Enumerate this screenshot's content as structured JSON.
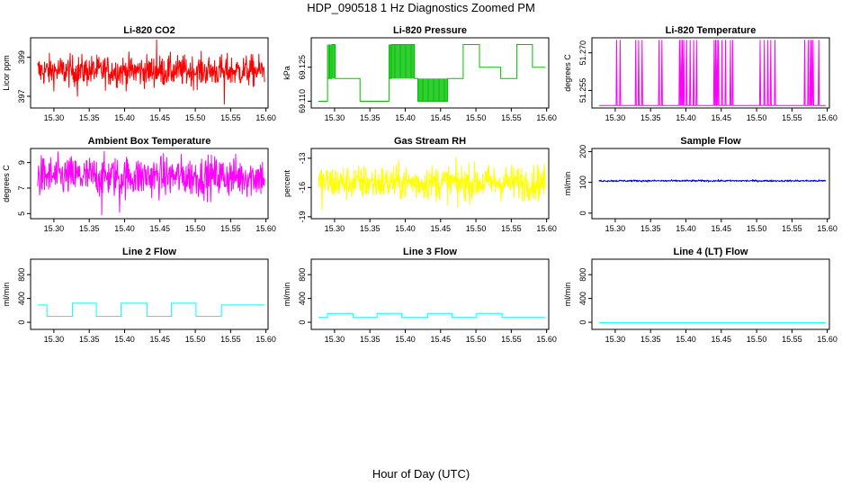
{
  "figure": {
    "title": "HDP_090518  1 Hz Diagnostics Zoomed PM",
    "xlabel": "Hour of Day (UTC)"
  },
  "chart_data": [
    {
      "id": "co2",
      "type": "line",
      "title": "Li-820 CO2",
      "ylabel": "Licor ppm",
      "color": "#ff0000",
      "xlim": [
        15.267,
        15.603
      ],
      "ylim": [
        396.4,
        400.0
      ],
      "xticks": [
        15.3,
        15.35,
        15.4,
        15.45,
        15.5,
        15.55,
        15.6
      ],
      "xtick_labels": [
        "15.30",
        "15.35",
        "15.40",
        "15.45",
        "15.50",
        "15.55",
        "15.60"
      ],
      "yticks": [
        397,
        399
      ],
      "ytick_labels": [
        "397",
        "399"
      ],
      "x_start": 15.277,
      "x_end": 15.598,
      "series_pattern": "noise",
      "mean": 398.3,
      "noise_sd": 0.4,
      "spikes": [
        [
          15.445,
          399.9
        ],
        [
          15.541,
          396.6
        ],
        [
          15.333,
          397.0
        ]
      ]
    },
    {
      "id": "pressure",
      "type": "line",
      "title": "Li-820 Pressure",
      "ylabel": "kPa",
      "color": "#00c000",
      "xlim": [
        15.267,
        15.603
      ],
      "ylim": [
        69.107,
        69.138
      ],
      "xticks": [
        15.3,
        15.35,
        15.4,
        15.45,
        15.5,
        15.55,
        15.6
      ],
      "xtick_labels": [
        "15.30",
        "15.35",
        "15.40",
        "15.45",
        "15.50",
        "15.55",
        "15.60"
      ],
      "yticks": [
        69.11,
        69.125
      ],
      "ytick_labels": [
        "69.110",
        "69.125"
      ],
      "x_start": 15.277,
      "x_end": 15.598,
      "series_pattern": "steps",
      "steps": [
        [
          15.277,
          69.11
        ],
        [
          15.29,
          69.12
        ],
        [
          15.296,
          69.135
        ],
        [
          15.301,
          69.12
        ],
        [
          15.336,
          69.11
        ],
        [
          15.377,
          69.12
        ],
        [
          15.38,
          69.135
        ],
        [
          15.413,
          69.12
        ],
        [
          15.418,
          69.11
        ],
        [
          15.46,
          69.12
        ],
        [
          15.482,
          69.135
        ],
        [
          15.505,
          69.125
        ],
        [
          15.535,
          69.12
        ],
        [
          15.558,
          69.135
        ],
        [
          15.58,
          69.125
        ],
        [
          15.598,
          69.125
        ]
      ],
      "flicker": [
        [
          15.29,
          15.301,
          69.12,
          69.135
        ],
        [
          15.377,
          15.413,
          69.12,
          69.135
        ],
        [
          15.418,
          15.46,
          69.11,
          69.12
        ]
      ]
    },
    {
      "id": "temperature",
      "type": "line",
      "title": "Li-820 Temperature",
      "ylabel": "degrees C",
      "color": "#ff00ff",
      "xlim": [
        15.267,
        15.603
      ],
      "ylim": [
        51.248,
        51.276
      ],
      "xticks": [
        15.3,
        15.35,
        15.4,
        15.45,
        15.5,
        15.55,
        15.6
      ],
      "xtick_labels": [
        "15.30",
        "15.35",
        "15.40",
        "15.45",
        "15.50",
        "15.55",
        "15.60"
      ],
      "yticks": [
        51.255,
        51.27
      ],
      "ytick_labels": [
        "51.255",
        "51.270"
      ],
      "x_start": 15.277,
      "x_end": 15.598,
      "series_pattern": "pulses",
      "low": 51.249,
      "high": 51.275,
      "pulses": [
        15.302,
        15.307,
        15.329,
        15.333,
        15.338,
        15.362,
        15.366,
        15.391,
        15.393,
        15.395,
        15.397,
        15.401,
        15.406,
        15.411,
        15.415,
        15.44,
        15.442,
        15.444,
        15.446,
        15.451,
        15.456,
        15.463,
        15.466,
        15.505,
        15.511,
        15.516,
        15.52,
        15.526,
        15.568,
        15.573,
        15.576,
        15.578,
        15.58,
        15.588
      ]
    },
    {
      "id": "ambient",
      "type": "line",
      "title": "Ambient Box Temperature",
      "ylabel": "degrees C",
      "color": "#ff00ff",
      "xlim": [
        15.267,
        15.603
      ],
      "ylim": [
        4.6,
        10.1
      ],
      "xticks": [
        15.3,
        15.35,
        15.4,
        15.45,
        15.5,
        15.55,
        15.6
      ],
      "xtick_labels": [
        "15.30",
        "15.35",
        "15.40",
        "15.45",
        "15.50",
        "15.55",
        "15.60"
      ],
      "yticks": [
        5,
        7,
        9
      ],
      "ytick_labels": [
        "5",
        "7",
        "9"
      ],
      "x_start": 15.277,
      "x_end": 15.598,
      "series_pattern": "noise",
      "mean": 7.9,
      "noise_sd": 0.8,
      "spikes": [
        [
          15.368,
          4.9
        ],
        [
          15.393,
          5.1
        ]
      ]
    },
    {
      "id": "rh",
      "type": "line",
      "title": "Gas Stream RH",
      "ylabel": "percent",
      "color": "#ffff00",
      "xlim": [
        15.267,
        15.603
      ],
      "ylim": [
        -19.2,
        -12.0
      ],
      "xticks": [
        15.3,
        15.35,
        15.4,
        15.45,
        15.5,
        15.55,
        15.6
      ],
      "xtick_labels": [
        "15.30",
        "15.35",
        "15.40",
        "15.45",
        "15.50",
        "15.55",
        "15.60"
      ],
      "yticks": [
        -19,
        -16,
        -13
      ],
      "ytick_labels": [
        "-19",
        "-16",
        "-13"
      ],
      "x_start": 15.277,
      "x_end": 15.598,
      "series_pattern": "noise",
      "mean": -15.5,
      "noise_sd": 0.9,
      "spikes": [
        [
          15.282,
          -18.3
        ],
        [
          15.474,
          -18.0
        ]
      ]
    },
    {
      "id": "sample",
      "type": "line",
      "title": "Sample Flow",
      "ylabel": "ml/min",
      "color": "#0000c0",
      "xlim": [
        15.267,
        15.603
      ],
      "ylim": [
        -18,
        210
      ],
      "xticks": [
        15.3,
        15.35,
        15.4,
        15.45,
        15.5,
        15.55,
        15.6
      ],
      "xtick_labels": [
        "15.30",
        "15.35",
        "15.40",
        "15.45",
        "15.50",
        "15.55",
        "15.60"
      ],
      "yticks": [
        0,
        100,
        200
      ],
      "ytick_labels": [
        "0",
        "100",
        "200"
      ],
      "x_start": 15.277,
      "x_end": 15.598,
      "series_pattern": "noise",
      "mean": 105,
      "noise_sd": 1.5,
      "spikes": []
    },
    {
      "id": "line2",
      "type": "line",
      "title": "Line 2 Flow",
      "ylabel": "ml/min",
      "color": "#00ffff",
      "xlim": [
        15.267,
        15.603
      ],
      "ylim": [
        -120,
        1060
      ],
      "xticks": [
        15.3,
        15.35,
        15.4,
        15.45,
        15.5,
        15.55,
        15.6
      ],
      "xtick_labels": [
        "15.30",
        "15.35",
        "15.40",
        "15.45",
        "15.50",
        "15.55",
        "15.60"
      ],
      "yticks": [
        0,
        400,
        800
      ],
      "ytick_labels": [
        "0",
        "400",
        "800"
      ],
      "x_start": 15.277,
      "x_end": 15.598,
      "series_pattern": "steps",
      "steps": [
        [
          15.277,
          290
        ],
        [
          15.29,
          100
        ],
        [
          15.326,
          320
        ],
        [
          15.36,
          100
        ],
        [
          15.395,
          320
        ],
        [
          15.432,
          100
        ],
        [
          15.466,
          320
        ],
        [
          15.501,
          100
        ],
        [
          15.537,
          290
        ],
        [
          15.598,
          290
        ]
      ]
    },
    {
      "id": "line3",
      "type": "line",
      "title": "Line 3 Flow",
      "ylabel": "ml/min",
      "color": "#00ffff",
      "xlim": [
        15.267,
        15.603
      ],
      "ylim": [
        -120,
        1060
      ],
      "xticks": [
        15.3,
        15.35,
        15.4,
        15.45,
        15.5,
        15.55,
        15.6
      ],
      "xtick_labels": [
        "15.30",
        "15.35",
        "15.40",
        "15.45",
        "15.50",
        "15.55",
        "15.60"
      ],
      "yticks": [
        0,
        400,
        800
      ],
      "ytick_labels": [
        "0",
        "400",
        "800"
      ],
      "x_start": 15.277,
      "x_end": 15.598,
      "series_pattern": "steps",
      "steps": [
        [
          15.277,
          80
        ],
        [
          15.29,
          150
        ],
        [
          15.326,
          80
        ],
        [
          15.36,
          150
        ],
        [
          15.395,
          80
        ],
        [
          15.432,
          150
        ],
        [
          15.466,
          80
        ],
        [
          15.501,
          150
        ],
        [
          15.537,
          80
        ],
        [
          15.598,
          80
        ]
      ]
    },
    {
      "id": "line4",
      "type": "line",
      "title": "Line 4 (LT) Flow",
      "ylabel": "ml/min",
      "color": "#00ffff",
      "xlim": [
        15.267,
        15.603
      ],
      "ylim": [
        -120,
        1060
      ],
      "xticks": [
        15.3,
        15.35,
        15.4,
        15.45,
        15.5,
        15.55,
        15.6
      ],
      "xtick_labels": [
        "15.30",
        "15.35",
        "15.40",
        "15.45",
        "15.50",
        "15.55",
        "15.60"
      ],
      "yticks": [
        0,
        400,
        800
      ],
      "ytick_labels": [
        "0",
        "400",
        "800"
      ],
      "x_start": 15.277,
      "x_end": 15.598,
      "series_pattern": "steps",
      "steps": [
        [
          15.277,
          -5
        ],
        [
          15.598,
          -5
        ]
      ]
    }
  ]
}
